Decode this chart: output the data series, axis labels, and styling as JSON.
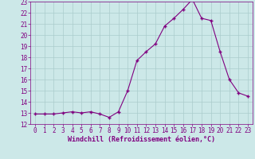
{
  "x": [
    0,
    1,
    2,
    3,
    4,
    5,
    6,
    7,
    8,
    9,
    10,
    11,
    12,
    13,
    14,
    15,
    16,
    17,
    18,
    19,
    20,
    21,
    22,
    23
  ],
  "y": [
    12.9,
    12.9,
    12.9,
    13.0,
    13.1,
    13.0,
    13.1,
    12.9,
    12.6,
    13.1,
    15.0,
    17.7,
    18.5,
    19.2,
    20.8,
    21.5,
    22.3,
    23.2,
    21.5,
    21.3,
    18.5,
    16.0,
    14.8,
    14.5
  ],
  "line_color": "#800080",
  "marker_color": "#800080",
  "bg_color": "#cce8e8",
  "grid_color": "#aacccc",
  "xlabel": "Windchill (Refroidissement éolien,°C)",
  "xlabel_color": "#800080",
  "tick_color": "#800080",
  "ylim": [
    12,
    23
  ],
  "xlim_min": -0.5,
  "xlim_max": 23.5,
  "yticks": [
    12,
    13,
    14,
    15,
    16,
    17,
    18,
    19,
    20,
    21,
    22,
    23
  ],
  "xticks": [
    0,
    1,
    2,
    3,
    4,
    5,
    6,
    7,
    8,
    9,
    10,
    11,
    12,
    13,
    14,
    15,
    16,
    17,
    18,
    19,
    20,
    21,
    22,
    23
  ],
  "tick_fontsize": 5.5,
  "xlabel_fontsize": 6.0
}
